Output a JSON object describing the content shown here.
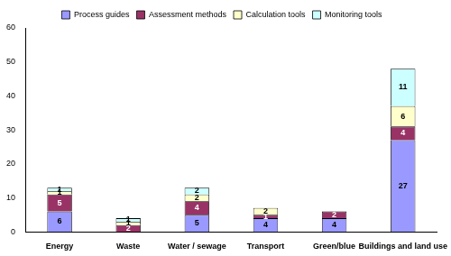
{
  "chart_data": {
    "type": "bar",
    "stacked": true,
    "data_labels": true,
    "grid": false,
    "legend": "top",
    "categories": [
      "Energy",
      "Waste",
      "Water / sewage",
      "Transport",
      "Green/blue",
      "Buildings and land use"
    ],
    "series": [
      {
        "name": "Process guides",
        "color": "#9999ff",
        "values": [
          6,
          0,
          5,
          4,
          4,
          27
        ]
      },
      {
        "name": "Assessment methods",
        "color": "#993366",
        "values": [
          5,
          2,
          4,
          1,
          2,
          4
        ]
      },
      {
        "name": "Calculation tools",
        "color": "#ffffcc",
        "values": [
          1,
          1,
          2,
          2,
          0,
          6
        ]
      },
      {
        "name": "Monitoring tools",
        "color": "#ccffff",
        "values": [
          1,
          1,
          2,
          0,
          0,
          11
        ]
      }
    ],
    "ylim": [
      0,
      60
    ],
    "yticks": [
      0,
      10,
      20,
      30,
      40,
      50,
      60
    ]
  }
}
